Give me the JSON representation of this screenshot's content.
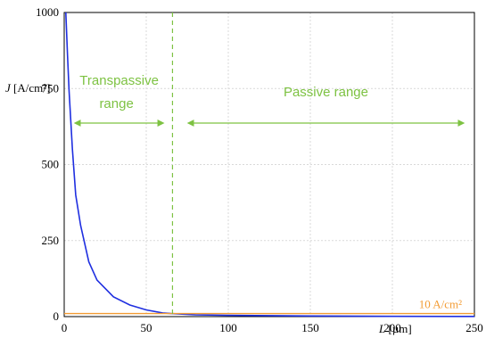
{
  "chart_data": {
    "type": "line",
    "xlim": [
      0,
      250
    ],
    "ylim": [
      0,
      1000
    ],
    "x_ticks": [
      0,
      50,
      100,
      150,
      200,
      250
    ],
    "y_ticks": [
      0,
      250,
      500,
      750,
      1000
    ],
    "xlabel": {
      "var": "L",
      "unit": "[µm]"
    },
    "ylabel": {
      "var": "J",
      "unit": "[A/cm²]"
    },
    "grid": true,
    "series": [
      {
        "color": "#1f2fe0",
        "x": [
          1,
          2,
          3,
          5,
          7,
          10,
          15,
          20,
          30,
          40,
          50,
          60,
          65,
          80,
          100,
          150,
          200,
          250
        ],
        "y": [
          1000,
          860,
          740,
          550,
          400,
          300,
          180,
          120,
          65,
          38,
          22,
          12,
          10,
          6,
          4,
          2,
          1,
          0.5
        ]
      },
      {
        "color": "#f39c34",
        "x": [
          0,
          250
        ],
        "y": [
          10,
          10
        ],
        "label": "10 A/cm²"
      }
    ],
    "boundary_x": 66,
    "annotations": {
      "transpassive": [
        "Transpassive",
        "range"
      ],
      "passive": "Passive range",
      "transpassive_arrow": [
        8,
        59
      ],
      "passive_arrow": [
        77,
        242
      ]
    },
    "colors": {
      "annotation": "#7dc242",
      "curve": "#1f2fe0",
      "reference": "#f39c34"
    }
  }
}
